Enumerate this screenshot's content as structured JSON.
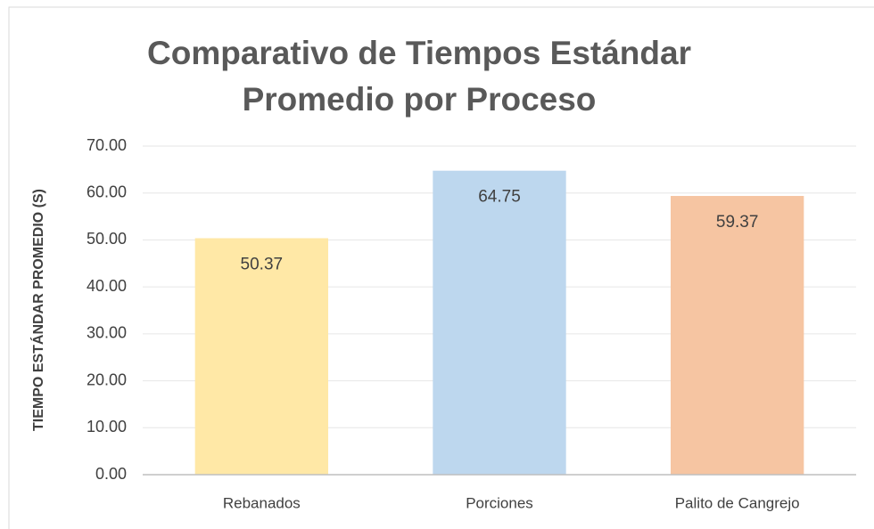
{
  "chart_data": {
    "type": "bar",
    "title": "Comparativo de Tiempos Estándar Promedio por Proceso",
    "y_label": "TIEMPO ESTÁNDAR PROMEDIO (S)",
    "categories": [
      "Rebanados",
      "Porciones",
      "Palito de Cangrejo"
    ],
    "values": [
      50.37,
      64.75,
      59.37
    ],
    "colors": [
      "#ffe8a6",
      "#bdd7ee",
      "#f6c5a2"
    ],
    "ylim": [
      0,
      70
    ],
    "yticks": [
      {
        "value": 0,
        "label": "0.00"
      },
      {
        "value": 10,
        "label": "10.00"
      },
      {
        "value": 20,
        "label": "20.00"
      },
      {
        "value": 30,
        "label": "30.00"
      },
      {
        "value": 40,
        "label": "40.00"
      },
      {
        "value": 50,
        "label": "50.00"
      },
      {
        "value": 60,
        "label": "60.00"
      },
      {
        "value": 70,
        "label": "70.00"
      }
    ],
    "grid": true
  }
}
